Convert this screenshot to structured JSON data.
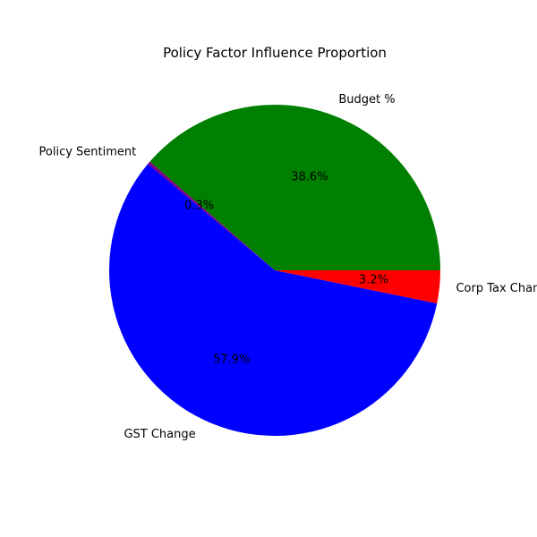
{
  "chart_data": {
    "type": "pie",
    "title": "Policy Factor Influence Proportion",
    "slices": [
      {
        "label": "Budget %",
        "percent": 38.6,
        "pct_label": "38.6%",
        "color": "#008000"
      },
      {
        "label": "Policy Sentiment",
        "percent": 0.3,
        "pct_label": "0.3%",
        "color": "#800080"
      },
      {
        "label": "GST Change",
        "percent": 57.9,
        "pct_label": "57.9%",
        "color": "#0000ff"
      },
      {
        "label": "Corp Tax Change",
        "percent": 3.2,
        "pct_label": "3.2%",
        "color": "#ff0000"
      }
    ],
    "start_angle_deg": 0,
    "direction": "counterclockwise",
    "legend": "none"
  }
}
